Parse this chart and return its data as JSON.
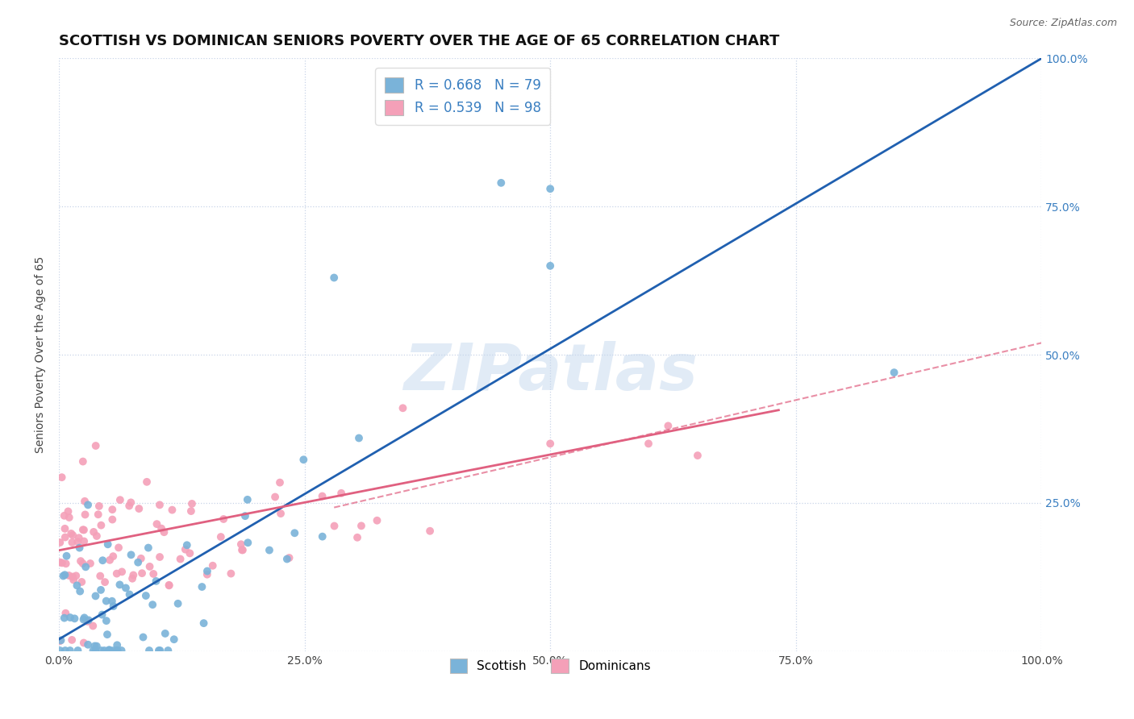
{
  "title": "SCOTTISH VS DOMINICAN SENIORS POVERTY OVER THE AGE OF 65 CORRELATION CHART",
  "source_text": "Source: ZipAtlas.com",
  "xlabel": "",
  "ylabel": "Seniors Poverty Over the Age of 65",
  "watermark": "ZIPatlas",
  "legend_entries": [
    {
      "label": "R = 0.668   N = 79",
      "color": "#a8c4e0"
    },
    {
      "label": "R = 0.539   N = 98",
      "color": "#f4b8c8"
    }
  ],
  "legend_labels_bottom": [
    "Scottish",
    "Dominicans"
  ],
  "scottish_color": "#7ab3d9",
  "dominican_color": "#f4a0b8",
  "scottish_line_color": "#2060b0",
  "dominican_line_color": "#e06080",
  "dashed_line_color": "#e06080",
  "xlim": [
    0,
    1
  ],
  "ylim": [
    0,
    1
  ],
  "xtick_labels": [
    "0.0%",
    "25.0%",
    "50.0%",
    "75.0%",
    "100.0%"
  ],
  "xtick_vals": [
    0,
    0.25,
    0.5,
    0.75,
    1.0
  ],
  "ytick_labels": [
    "25.0%",
    "50.0%",
    "75.0%",
    "100.0%"
  ],
  "ytick_vals": [
    0.25,
    0.5,
    0.75,
    1.0
  ],
  "background_color": "#ffffff",
  "grid_color": "#c8d4e8",
  "title_fontsize": 13,
  "axis_label_fontsize": 10,
  "tick_fontsize": 10,
  "scottish_line": [
    0.0,
    0.02,
    1.0,
    1.0
  ],
  "dominican_line": [
    0.0,
    0.17,
    0.65,
    0.38
  ],
  "dashed_line": [
    0.3,
    0.25,
    1.0,
    0.52
  ]
}
